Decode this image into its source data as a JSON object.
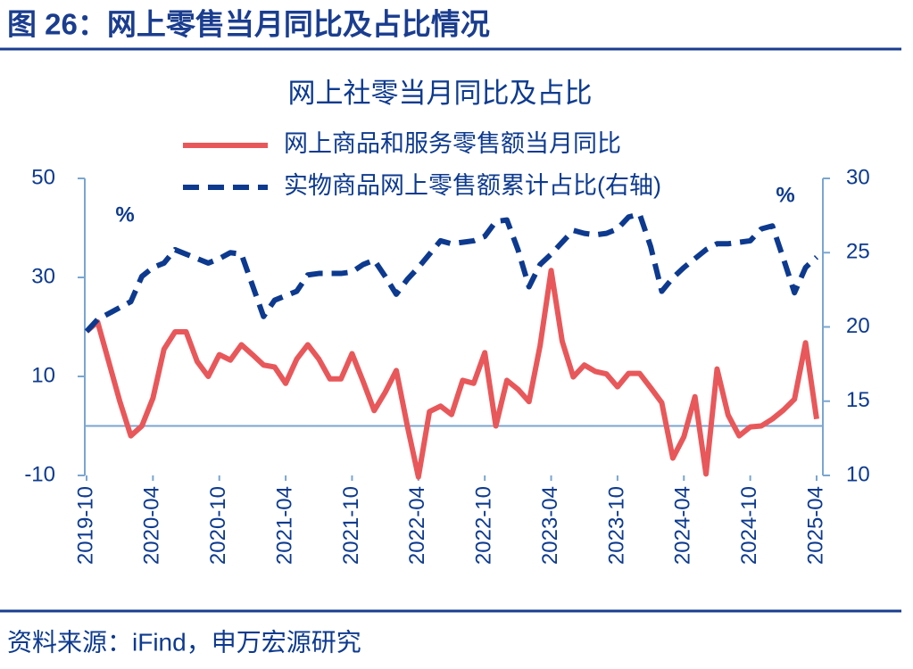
{
  "header": {
    "title": "图 26：网上零售当月同比及占比情况"
  },
  "source": "资料来源：iFind，申万宏源研究",
  "chart_data": {
    "type": "line",
    "title": "网上社零当月同比及占比",
    "y_unit": "%",
    "y2_unit": "%",
    "categories": [
      "2019-10",
      null,
      null,
      null,
      null,
      null,
      "2020-04",
      null,
      null,
      null,
      null,
      null,
      "2020-10",
      null,
      null,
      null,
      null,
      null,
      "2021-04",
      null,
      null,
      null,
      null,
      null,
      "2021-10",
      null,
      null,
      null,
      null,
      null,
      "2022-04",
      null,
      null,
      null,
      null,
      null,
      "2022-10",
      null,
      null,
      null,
      null,
      null,
      "2023-04",
      null,
      null,
      null,
      null,
      null,
      "2023-10",
      null,
      null,
      null,
      null,
      null,
      "2024-04",
      null,
      null,
      null,
      null,
      null,
      "2024-10",
      null,
      null,
      null,
      null,
      null,
      "2025-04"
    ],
    "series": [
      {
        "name": "网上商品和服务零售额当月同比",
        "color": "#e8585a",
        "dashed": false,
        "values": [
          19.1,
          21,
          13,
          5,
          -2,
          0,
          5.6,
          15.5,
          19,
          19,
          13,
          10,
          14.4,
          13.3,
          16.4,
          14.4,
          12.3,
          11.9,
          8.6,
          13.5,
          16.4,
          13.5,
          9.5,
          9.5,
          14.6,
          9,
          3.1,
          6.8,
          11.2,
          0,
          -10.3,
          2.9,
          4,
          2.3,
          9.2,
          8.6,
          14.8,
          0,
          9.2,
          7.4,
          4.9,
          16.2,
          31.4,
          17.1,
          9.9,
          12.3,
          11,
          10.5,
          7.9,
          10.6,
          10.6,
          7.7,
          4.7,
          -6.5,
          -2.2,
          5.9,
          -9.7,
          11.5,
          2.2,
          -2,
          -0.2,
          0,
          1.4,
          3.2,
          5.4,
          16.8,
          1.4
        ]
      },
      {
        "name": "实物商品网上零售额累计占比(右轴)",
        "color": "#0d3a8f",
        "dashed": true,
        "axis": "y2",
        "values": [
          19.7,
          20.5,
          20.9,
          21.3,
          21.7,
          23.4,
          24,
          24.3,
          25.2,
          24.9,
          24.6,
          24.3,
          24.6,
          25,
          24.9,
          22.8,
          20.7,
          21.8,
          22.1,
          22.4,
          23.5,
          23.6,
          23.6,
          23.6,
          23.7,
          24.2,
          24.5,
          23.4,
          22.2,
          23.2,
          24,
          24.9,
          25.8,
          25.6,
          25.7,
          25.8,
          26.1,
          27.1,
          27.2,
          25.2,
          22.7,
          24.2,
          24.9,
          25.7,
          26.5,
          26.3,
          26.2,
          26.3,
          26.6,
          27.4,
          27.6,
          25.4,
          22.4,
          23.3,
          24,
          24.6,
          25.2,
          25.6,
          25.6,
          25.7,
          25.8,
          26.6,
          26.8,
          24.6,
          22.3,
          24,
          24.7
        ]
      }
    ],
    "ylim": [
      -10,
      50
    ],
    "yticks": [
      -10,
      10,
      30,
      50
    ],
    "y2lim": [
      10,
      30
    ],
    "y2ticks": [
      10,
      15,
      20,
      25,
      30
    ]
  }
}
